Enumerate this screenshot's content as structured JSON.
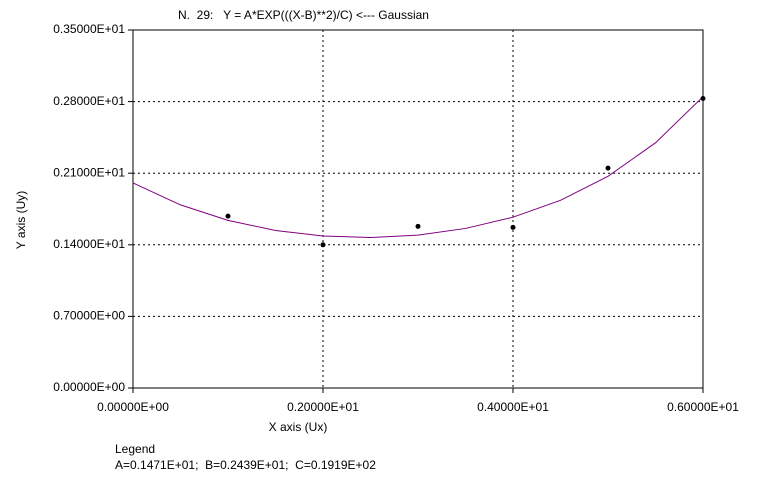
{
  "chart_data": {
    "type": "scatter",
    "title": "N.  29:   Y = A*EXP(((X-B)**2)/C) <--- Gaussian",
    "x_label": "X axis (Ux)",
    "y_label": "Y axis (Uy)",
    "legend_title": "Legend",
    "legend_text": "A=0.1471E+01;  B=0.2439E+01;  C=0.1919E+02",
    "xlim": [
      0,
      6
    ],
    "ylim": [
      0,
      3.5
    ],
    "xticks": [
      {
        "value": 0,
        "label": "0.00000E+00"
      },
      {
        "value": 2,
        "label": "0.20000E+01"
      },
      {
        "value": 4,
        "label": "0.40000E+01"
      },
      {
        "value": 6,
        "label": "0.60000E+01"
      }
    ],
    "yticks": [
      {
        "value": 0,
        "label": "0.00000E+00"
      },
      {
        "value": 0.7,
        "label": "0.70000E+00"
      },
      {
        "value": 1.4,
        "label": "0.14000E+01"
      },
      {
        "value": 2.1,
        "label": "0.21000E+01"
      },
      {
        "value": 2.8,
        "label": "0.28000E+01"
      },
      {
        "value": 3.5,
        "label": "0.35000E+01"
      }
    ],
    "grid": true,
    "series": [
      {
        "type": "line",
        "color": "#800080",
        "x": [
          0,
          0.5,
          1,
          1.5,
          2,
          2.5,
          3,
          3.5,
          4,
          4.5,
          5,
          5.5,
          6
        ],
        "values": [
          2.005,
          1.79,
          1.639,
          1.54,
          1.486,
          1.471,
          1.495,
          1.56,
          1.67,
          1.835,
          2.07,
          2.397,
          2.848
        ]
      },
      {
        "type": "scatter",
        "color": "#000000",
        "x": [
          1,
          2,
          3,
          4,
          5,
          6
        ],
        "values": [
          1.68,
          1.4,
          1.58,
          1.57,
          2.15,
          2.83
        ]
      }
    ]
  }
}
